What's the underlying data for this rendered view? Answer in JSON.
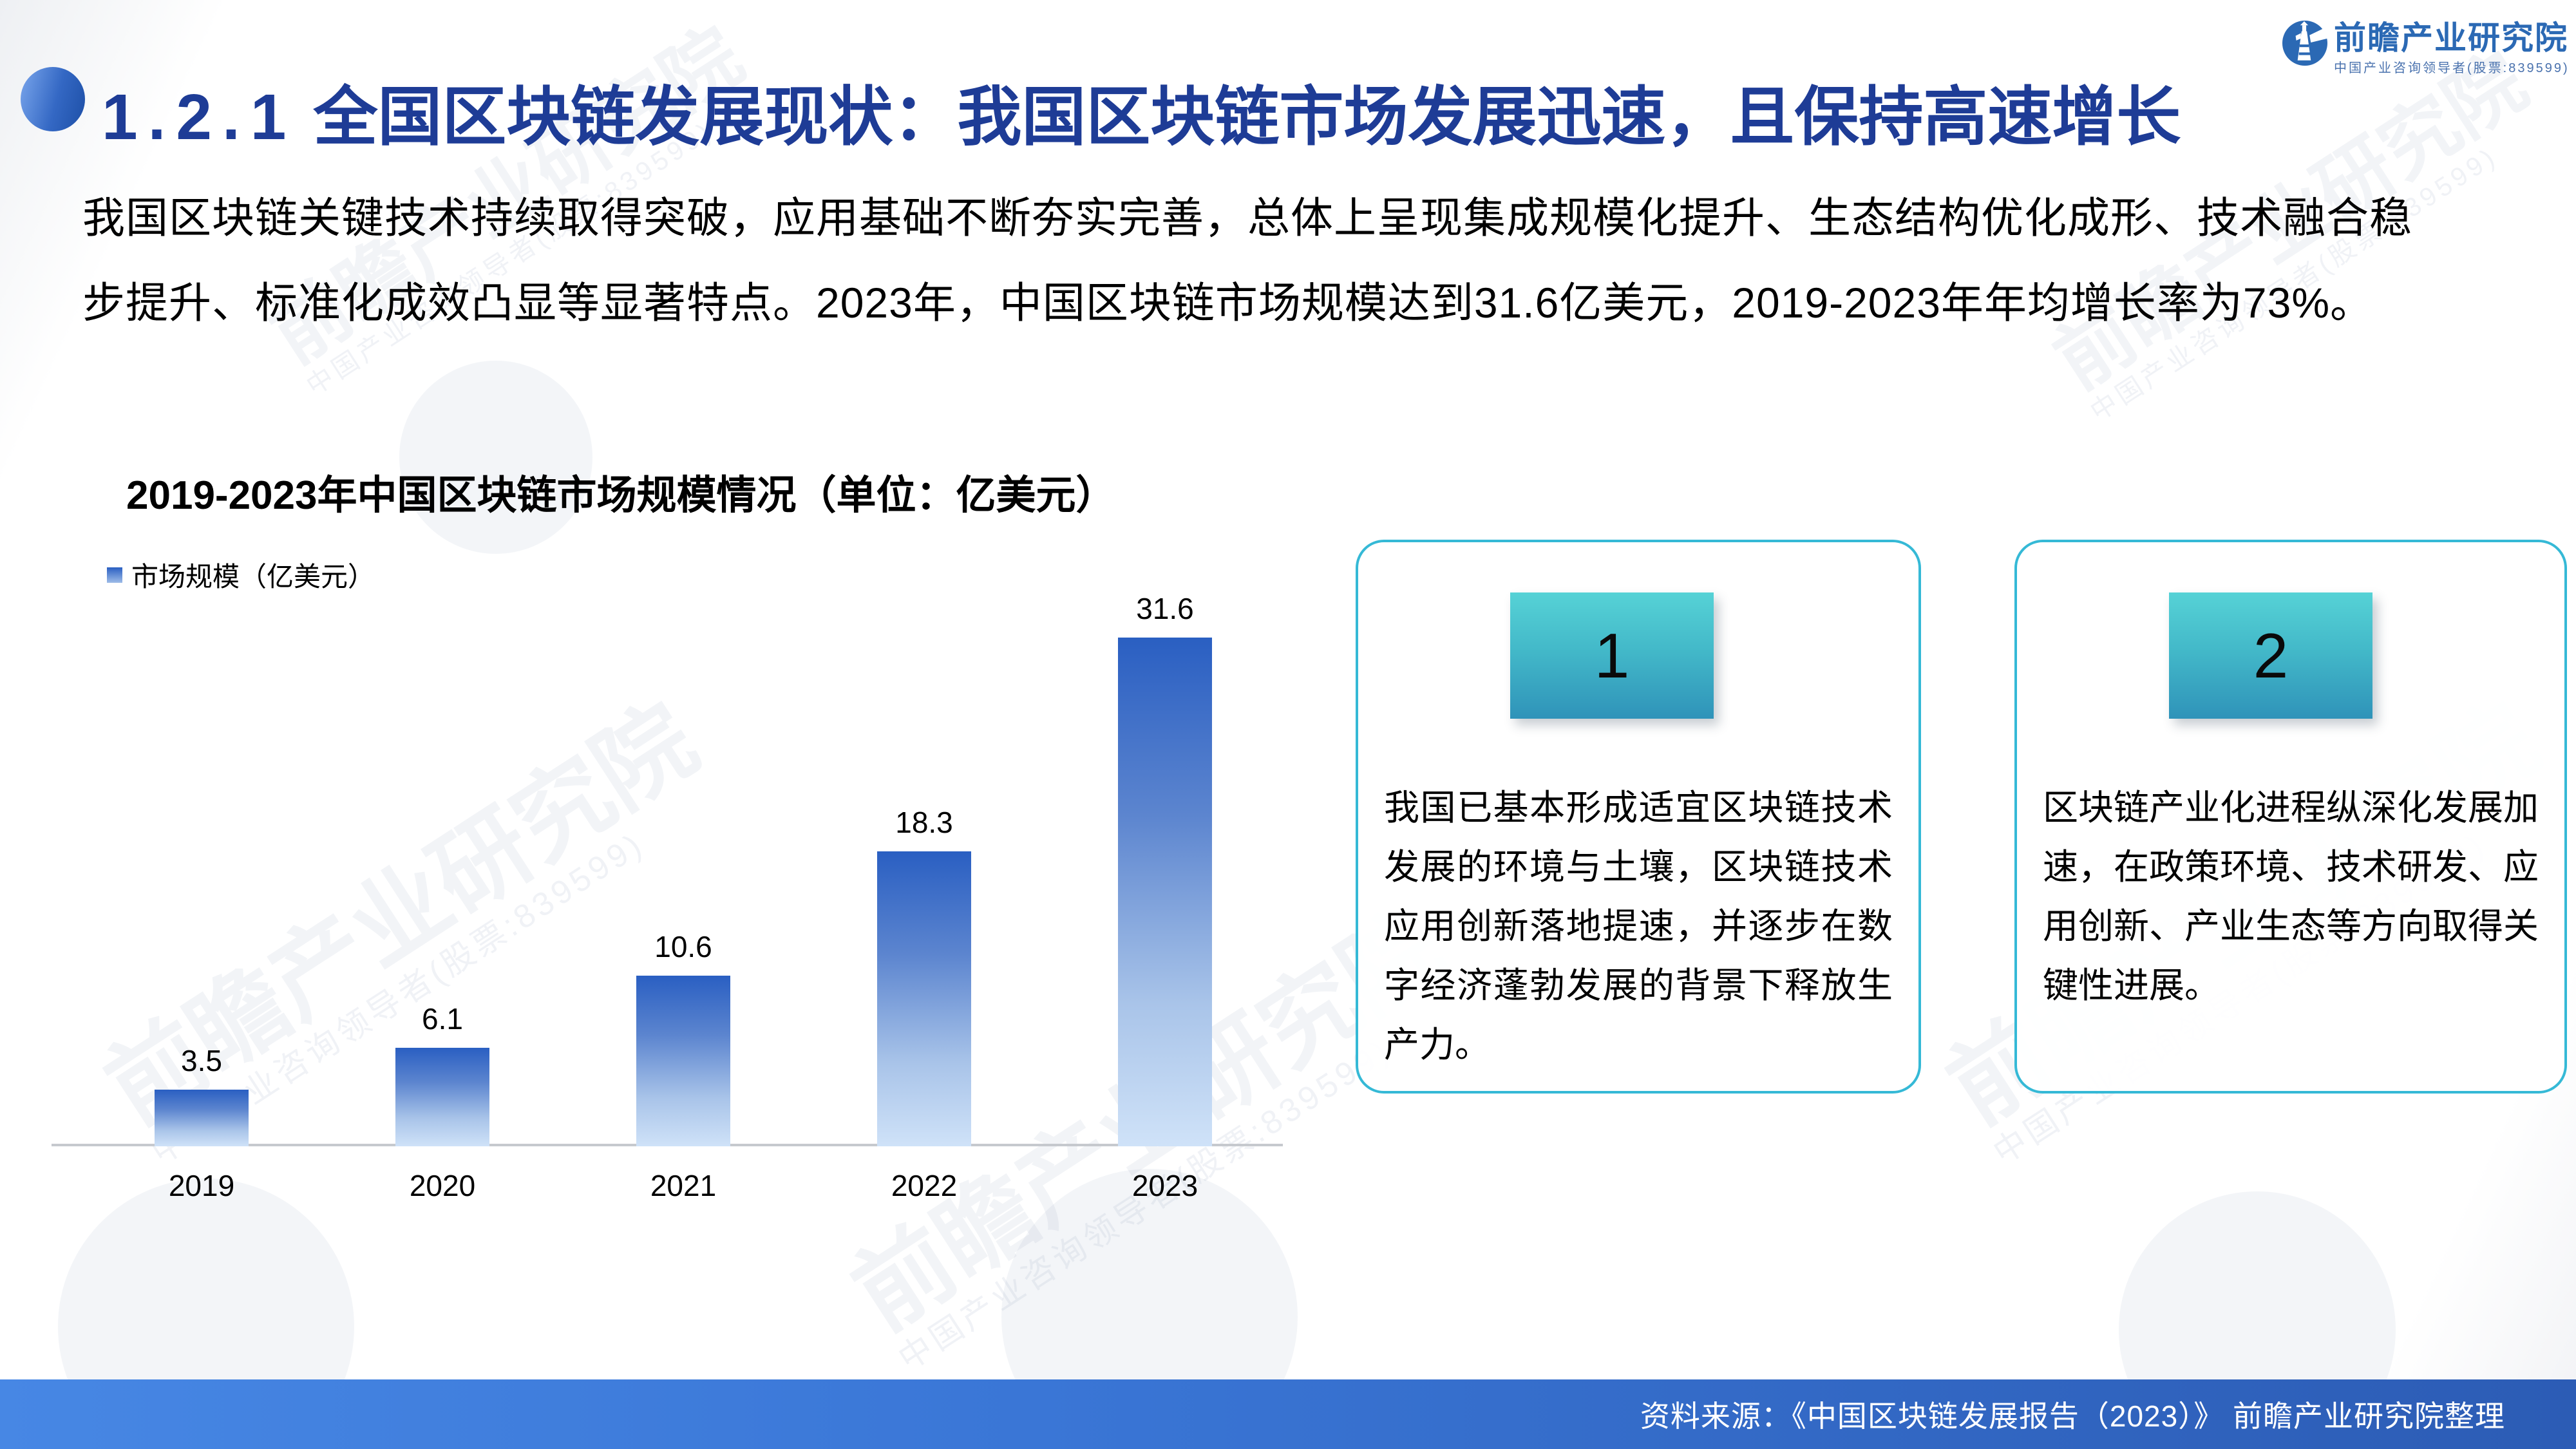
{
  "header": {
    "number": "1.2.1",
    "title": "全国区块链发展现状：我国区块链市场发展迅速，且保持高速增长"
  },
  "intro": {
    "line1": "我国区块链关键技术持续取得突破，应用基础不断夯实完善，总体上呈现集成规模化提升、生态结构优化成形、技术融合稳",
    "line2": "步提升、标准化成效凸显等显著特点。2023年，中国区块链市场规模达到31.6亿美元，2019-2023年年均增长率为73%。"
  },
  "chart_data": {
    "type": "bar",
    "title": "2019-2023年中国区块链市场规模情况（单位：亿美元）",
    "legend": "市场规模（亿美元）",
    "legend_position": "top-left",
    "categories": [
      "2019",
      "2020",
      "2021",
      "2022",
      "2023"
    ],
    "values": [
      3.5,
      6.1,
      10.6,
      18.3,
      31.6
    ],
    "value_labels": [
      "3.5",
      "6.1",
      "10.6",
      "18.3",
      "31.6"
    ],
    "xlabel": "",
    "ylabel": "亿美元",
    "ylim": [
      0,
      35
    ],
    "grid": false,
    "bar_color_top": "#2a5fc2",
    "bar_color_bottom": "#cfe2f8"
  },
  "cards": [
    {
      "number": "1",
      "text": "我国已基本形成适宜区块链技术发展的环境与土壤，区块链技术应用创新落地提速，并逐步在数字经济蓬勃发展的背景下释放生产力。"
    },
    {
      "number": "2",
      "text": "区块链产业化进程纵深化发展加速，在政策环境、技术研发、应用创新、产业生态等方向取得关键性进展。"
    }
  ],
  "footer": {
    "source": "资料来源：《中国区块链发展报告（2023）》  前瞻产业研究院整理"
  },
  "logo": {
    "name": "前瞻产业研究院",
    "tagline": "中国产业咨询领导者(股票:839599)"
  },
  "watermark": {
    "text": "前瞻产业研究院",
    "tagline": "中国产业咨询领导者(股票:839599)"
  },
  "colors": {
    "title_blue": "#1e3c96",
    "card_border_cyan": "#35b9d6",
    "plate_teal_top": "#56d2d6",
    "plate_teal_bottom": "#2f93b9",
    "footer_blue_left": "#4787e4",
    "footer_blue_right": "#2c5cb5",
    "logo_blue": "#2b69b4",
    "bar_top": "#2a5fc2",
    "bar_bottom": "#cfe2f8"
  }
}
